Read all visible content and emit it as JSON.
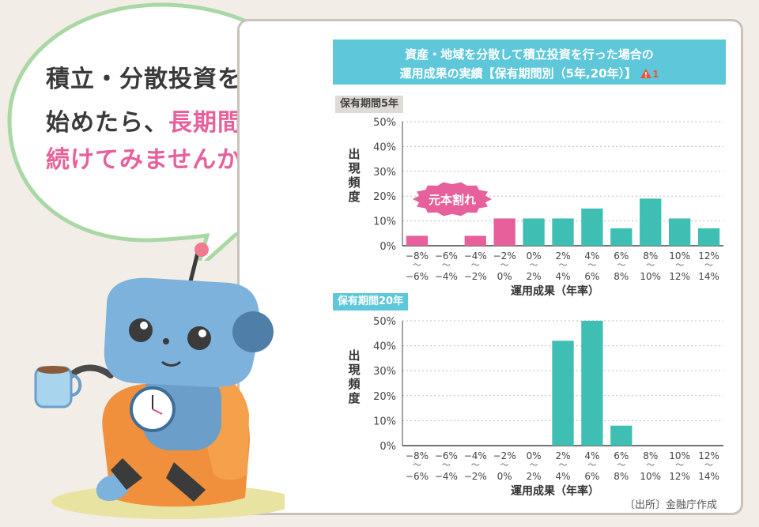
{
  "speech": {
    "line1": "積立・分散投資を",
    "line2a": "始めたら、",
    "line2b": "長期間",
    "line3": "続けてみませんか？"
  },
  "panel": {
    "title_line1": "資産・地域を分散して積立投資を行った場合の",
    "title_line2": "運用成果の実績【保有期間別（5年,20年）】",
    "warning_number": "1",
    "source": "〔出所〕金融庁作成"
  },
  "colors": {
    "pink": "#e8609b",
    "teal": "#3fbfb4",
    "title_bg": "#5ec8da"
  },
  "chart_data": [
    {
      "type": "bar",
      "title": "保有期間5年",
      "ylabel": "出現頻度",
      "xlabel": "運用成果（年率）",
      "ylim": [
        0,
        50
      ],
      "yticks": [
        "0%",
        "10%",
        "20%",
        "30%",
        "40%",
        "50%"
      ],
      "categories": [
        "−8%〜−6%",
        "−6%〜−4%",
        "−4%〜−2%",
        "−2%〜0%",
        "0%〜2%",
        "2%〜4%",
        "4%〜6%",
        "6%〜8%",
        "8%〜10%",
        "10%〜12%",
        "12%〜14%"
      ],
      "cat_top": [
        "−8%",
        "−6%",
        "−4%",
        "−2%",
        "0%",
        "2%",
        "4%",
        "6%",
        "8%",
        "10%",
        "12%"
      ],
      "cat_bottom": [
        "−6%",
        "−4%",
        "−2%",
        "0%",
        "2%",
        "4%",
        "6%",
        "8%",
        "10%",
        "12%",
        "14%"
      ],
      "values": [
        4,
        0,
        4,
        11,
        11,
        11,
        15,
        7,
        19,
        11,
        7
      ],
      "annotation": "元本割れ"
    },
    {
      "type": "bar",
      "title": "保有期間20年",
      "ylabel": "出現頻度",
      "xlabel": "運用成果（年率）",
      "ylim": [
        0,
        50
      ],
      "yticks": [
        "0%",
        "10%",
        "20%",
        "30%",
        "40%",
        "50%"
      ],
      "categories": [
        "−8%〜−6%",
        "−6%〜−4%",
        "−4%〜−2%",
        "−2%〜0%",
        "0%〜2%",
        "2%〜4%",
        "4%〜6%",
        "6%〜8%",
        "8%〜10%",
        "10%〜12%",
        "12%〜14%"
      ],
      "cat_top": [
        "−8%",
        "−6%",
        "−4%",
        "−2%",
        "0%",
        "2%",
        "4%",
        "6%",
        "8%",
        "10%",
        "12%"
      ],
      "cat_bottom": [
        "−6%",
        "−4%",
        "−2%",
        "0%",
        "2%",
        "4%",
        "6%",
        "8%",
        "10%",
        "12%",
        "14%"
      ],
      "values": [
        0,
        0,
        0,
        0,
        0,
        42,
        50,
        8,
        0,
        0,
        0
      ]
    }
  ]
}
